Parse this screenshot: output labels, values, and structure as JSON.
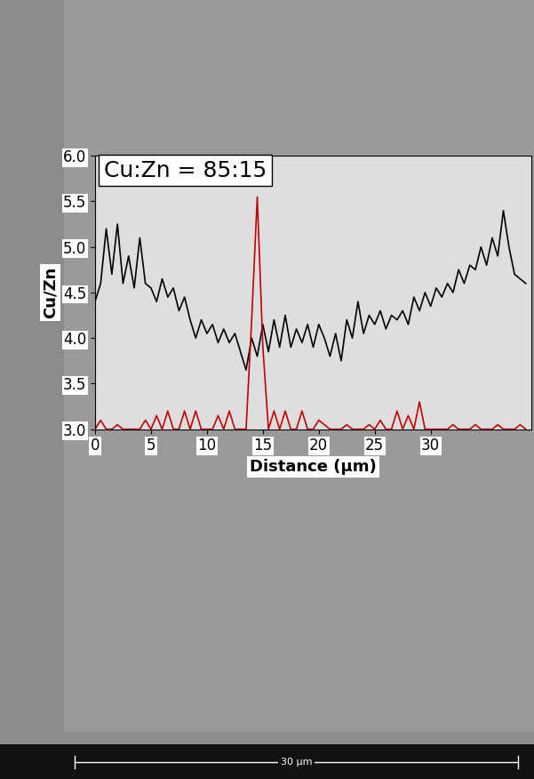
{
  "chart_data": {
    "type": "line",
    "y_label": "Cu/Zn",
    "x_label": "Distance (µm)",
    "annotations": [
      "Cu:Zn = 85:15",
      "30 µm"
    ],
    "x": [
      0,
      0.5,
      1,
      1.5,
      2,
      2.5,
      3,
      3.5,
      4,
      4.5,
      5,
      5.5,
      6,
      6.5,
      7,
      7.5,
      8,
      8.5,
      9,
      9.5,
      10,
      10.5,
      11,
      11.5,
      12,
      12.5,
      13,
      13.5,
      14,
      14.5,
      15,
      15.5,
      16,
      16.5,
      17,
      17.5,
      18,
      18.5,
      19,
      19.5,
      20,
      20.5,
      21,
      21.5,
      22,
      22.5,
      23,
      23.5,
      24,
      24.5,
      25,
      25.5,
      26,
      26.5,
      27,
      27.5,
      28,
      28.5,
      29,
      29.5,
      30,
      30.5,
      31,
      31.5,
      32,
      32.5,
      33,
      33.5,
      34,
      34.5,
      35,
      35.5,
      36,
      36.5,
      37,
      37.5,
      38,
      38.5
    ],
    "series": [
      {
        "color": "#000000",
        "values": [
          4.4,
          4.6,
          5.2,
          4.7,
          5.25,
          4.6,
          4.9,
          4.55,
          5.1,
          4.6,
          4.55,
          4.4,
          4.65,
          4.45,
          4.55,
          4.3,
          4.45,
          4.2,
          4.0,
          4.2,
          4.05,
          4.15,
          3.95,
          4.1,
          3.95,
          4.05,
          3.85,
          3.65,
          4.0,
          3.8,
          4.15,
          3.85,
          4.2,
          3.9,
          4.25,
          3.9,
          4.1,
          3.95,
          4.15,
          3.9,
          4.15,
          4.0,
          3.8,
          4.05,
          3.75,
          4.2,
          4.0,
          4.4,
          4.05,
          4.25,
          4.15,
          4.3,
          4.1,
          4.25,
          4.2,
          4.3,
          4.15,
          4.45,
          4.3,
          4.5,
          4.35,
          4.55,
          4.45,
          4.6,
          4.5,
          4.75,
          4.6,
          4.8,
          4.75,
          5.0,
          4.8,
          5.1,
          4.9,
          5.4,
          5.0,
          4.7,
          4.65,
          4.6
        ]
      },
      {
        "color": "#c00000",
        "values": [
          3.0,
          3.1,
          3.0,
          3.0,
          3.05,
          3.0,
          3.0,
          3.0,
          3.0,
          3.1,
          3.0,
          3.15,
          3.0,
          3.2,
          3.0,
          3.0,
          3.2,
          3.0,
          3.2,
          3.0,
          3.0,
          3.0,
          3.15,
          3.0,
          3.2,
          3.0,
          3.0,
          3.0,
          4.2,
          5.55,
          3.9,
          3.0,
          3.2,
          3.0,
          3.2,
          3.0,
          3.0,
          3.2,
          3.0,
          3.0,
          3.1,
          3.05,
          3.0,
          3.0,
          3.0,
          3.05,
          3.0,
          3.0,
          3.0,
          3.05,
          3.0,
          3.1,
          3.0,
          3.0,
          3.2,
          3.0,
          3.15,
          3.0,
          3.3,
          3.0,
          3.0,
          3.0,
          3.0,
          3.0,
          3.05,
          3.0,
          3.0,
          3.0,
          3.05,
          3.0,
          3.0,
          3.0,
          3.05,
          3.0,
          3.0,
          3.0,
          3.05,
          3.0
        ]
      }
    ],
    "xlim": [
      0,
      39
    ],
    "xticks": [
      0,
      5,
      10,
      15,
      20,
      25,
      30
    ],
    "ylim": [
      3.0,
      6.0
    ],
    "yticks": [
      3.0,
      3.5,
      4.0,
      4.5,
      5.0,
      5.5,
      6.0
    ],
    "grid": false
  }
}
